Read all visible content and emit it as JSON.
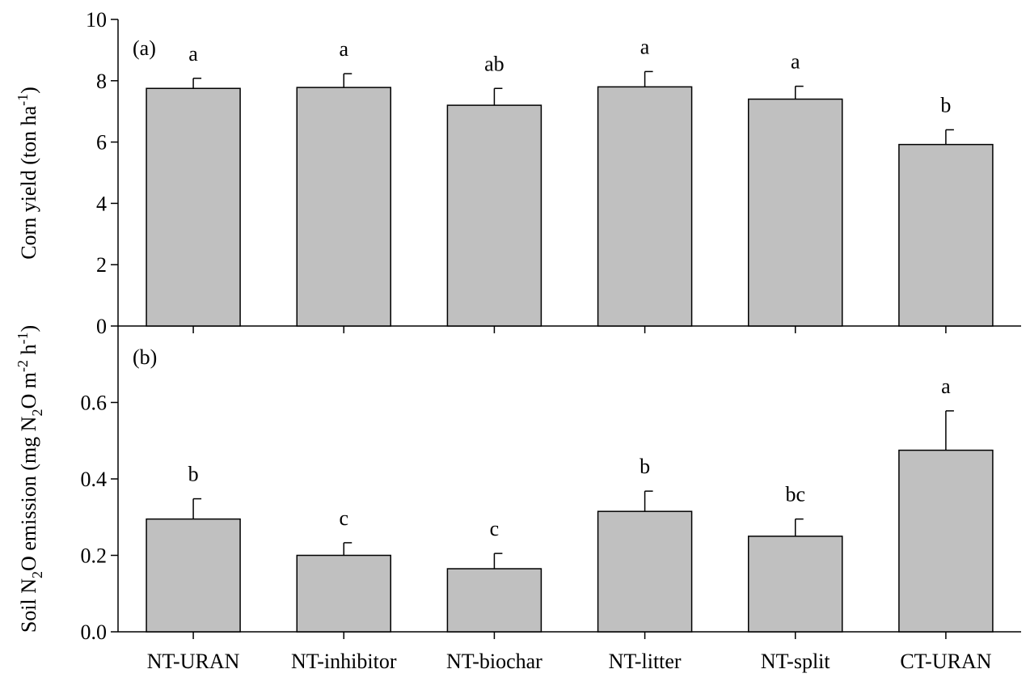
{
  "chart_data": [
    {
      "type": "bar",
      "panel_label": "(a)",
      "ylabel_parts": {
        "main": "Corn yield (ton ha",
        "sup": "-1",
        "end": ")"
      },
      "ylim": [
        0,
        10
      ],
      "yticks": [
        "0",
        "2",
        "4",
        "6",
        "8",
        "10"
      ],
      "categories": [
        "NT-URAN",
        "NT-inhibitor",
        "NT-biochar",
        "NT-litter",
        "NT-split",
        "CT-URAN"
      ],
      "values": [
        7.75,
        7.78,
        7.2,
        7.8,
        7.4,
        5.92
      ],
      "errors": [
        0.33,
        0.45,
        0.55,
        0.5,
        0.42,
        0.48
      ],
      "letters": [
        "a",
        "a",
        "ab",
        "a",
        "a",
        "b"
      ],
      "bar_color": "#c0c0c0"
    },
    {
      "type": "bar",
      "panel_label": "(b)",
      "ylabel_parts": {
        "a": "Soil N",
        "sub1": "2",
        "b": "O emission (mg N",
        "sub2": "2",
        "c": "O m",
        "sup1": "-2",
        "d": " h",
        "sup2": "-1",
        "e": ")"
      },
      "ylim": [
        0,
        0.8
      ],
      "yticks": [
        "0.0",
        "0.2",
        "0.4",
        "0.6"
      ],
      "categories": [
        "NT-URAN",
        "NT-inhibitor",
        "NT-biochar",
        "NT-litter",
        "NT-split",
        "CT-URAN"
      ],
      "values": [
        0.295,
        0.2,
        0.165,
        0.315,
        0.25,
        0.475
      ],
      "errors": [
        0.053,
        0.033,
        0.04,
        0.053,
        0.045,
        0.103
      ],
      "letters": [
        "b",
        "c",
        "c",
        "b",
        "bc",
        "a"
      ],
      "bar_color": "#c0c0c0"
    }
  ]
}
